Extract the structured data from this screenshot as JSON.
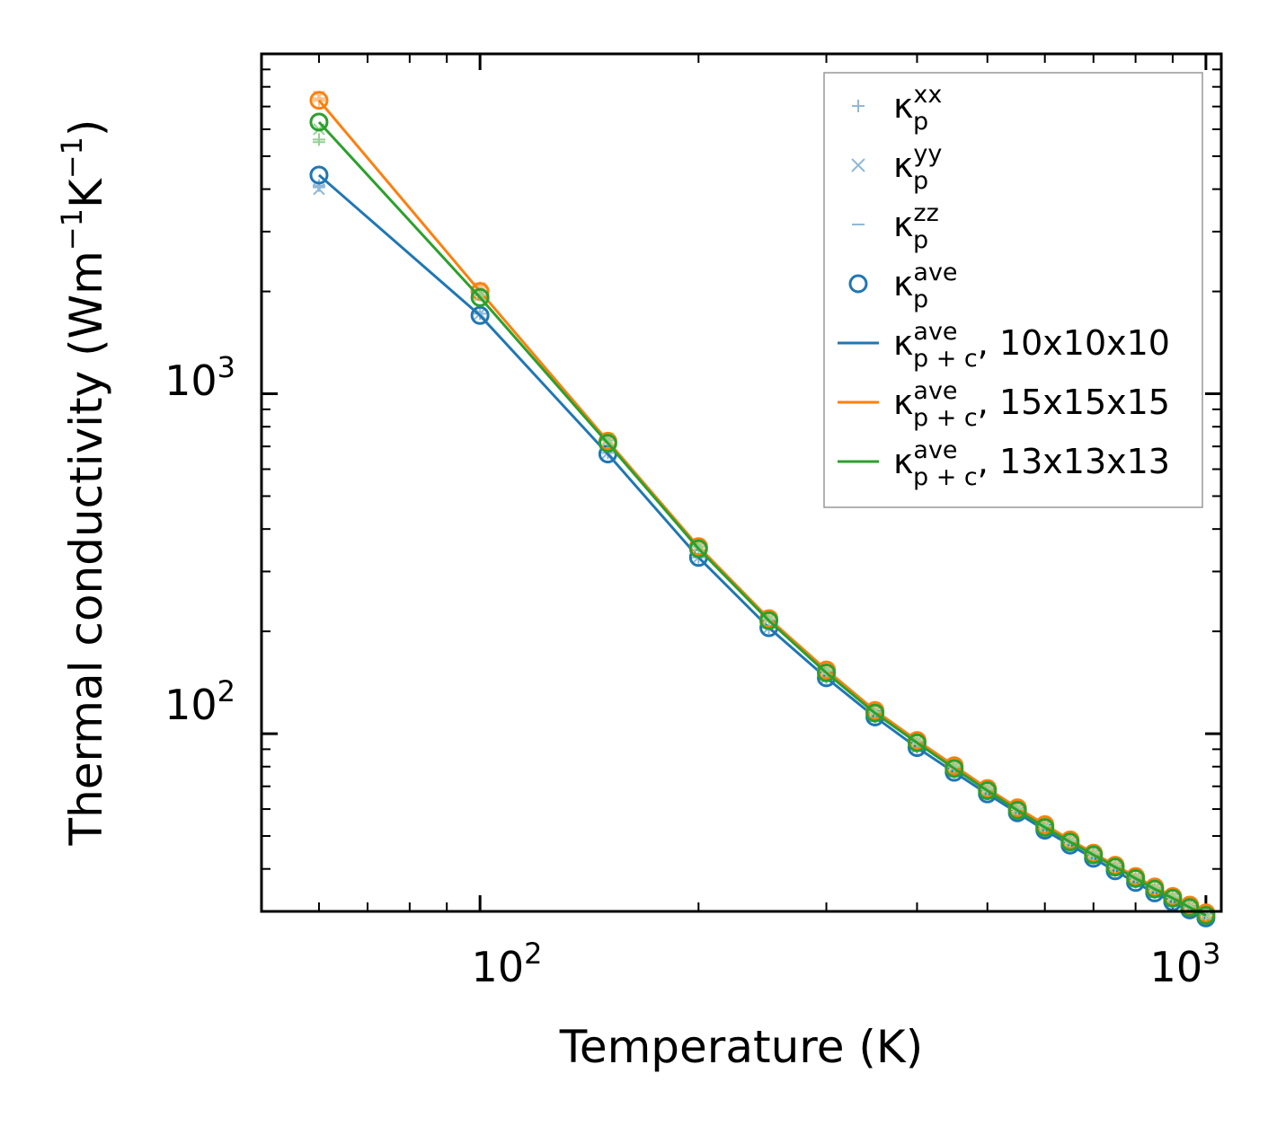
{
  "chart_data": {
    "type": "line",
    "xscale": "log",
    "yscale": "log",
    "xlabel": "Temperature (K)",
    "ylabel": {
      "prefix": "Thermal conductivity (Wm",
      "exp1": "−1",
      "middle": "K",
      "exp2": "−1",
      "suffix": ")"
    },
    "xlim": [
      50,
      1050
    ],
    "ylim": [
      30,
      10000
    ],
    "x_ticks": [
      {
        "value": 100,
        "base": "10",
        "exp": "2"
      },
      {
        "value": 1000,
        "base": "10",
        "exp": "3"
      }
    ],
    "y_ticks": [
      {
        "value": 100,
        "base": "10",
        "exp": "2"
      },
      {
        "value": 1000,
        "base": "10",
        "exp": "3"
      }
    ],
    "x": [
      60,
      100,
      150,
      200,
      250,
      300,
      350,
      400,
      450,
      500,
      550,
      600,
      650,
      700,
      750,
      800,
      850,
      900,
      950,
      1000
    ],
    "series": [
      {
        "name": "κp,p+c ave, 10x10x10",
        "color": "#1f77b4",
        "kxx": [
          4100,
          1720,
          670,
          330,
          205,
          146,
          112,
          91,
          77,
          66.5,
          58.5,
          52,
          47,
          43,
          39.5,
          36.5,
          34,
          32,
          30.3,
          28.7
        ],
        "kyy": [
          4000,
          1720,
          670,
          330,
          205,
          146,
          112,
          91,
          77,
          66.5,
          58.5,
          52,
          47,
          43,
          39.5,
          36.5,
          34,
          32,
          30.3,
          28.7
        ],
        "kzz": [
          4050,
          1720,
          670,
          330,
          205,
          146,
          112,
          91,
          77,
          66.5,
          58.5,
          52,
          47,
          43,
          39.5,
          36.5,
          34,
          32,
          30.3,
          28.7
        ],
        "kave": [
          4400,
          1700,
          665,
          330,
          205,
          146,
          112,
          91,
          77,
          66.5,
          58.5,
          52,
          47,
          43,
          39.5,
          36.5,
          34,
          32,
          30.3,
          28.7
        ],
        "kpc": [
          4400,
          1700,
          665,
          330,
          205,
          146,
          112,
          91,
          77,
          66.5,
          58.5,
          52,
          47,
          43,
          39.5,
          36.5,
          34,
          32,
          30.3,
          28.7
        ]
      },
      {
        "name": "κp,p+c ave, 15x15x15",
        "color": "#ff7f0e",
        "kxx": [
          7300,
          2050,
          740,
          360,
          220,
          155,
          118,
          96,
          81,
          69.5,
          61,
          54.5,
          49,
          44.8,
          41.3,
          38.2,
          35.6,
          33.4,
          31.5,
          29.9
        ],
        "kyy": [
          7500,
          2050,
          740,
          360,
          220,
          155,
          118,
          96,
          81,
          69.5,
          61,
          54.5,
          49,
          44.8,
          41.3,
          38.2,
          35.6,
          33.4,
          31.5,
          29.9
        ],
        "kzz": [
          7400,
          2050,
          740,
          360,
          220,
          155,
          118,
          96,
          81,
          69.5,
          61,
          54.5,
          49,
          44.8,
          41.3,
          38.2,
          35.6,
          33.4,
          31.5,
          29.9
        ],
        "kave": [
          7300,
          2000,
          725,
          355,
          218,
          154,
          117,
          95.5,
          80.5,
          69,
          60.5,
          54,
          48.7,
          44.5,
          41,
          38,
          35.4,
          33.2,
          31.3,
          29.7
        ],
        "kpc": [
          7300,
          2000,
          725,
          355,
          218,
          154,
          117,
          95.5,
          80.5,
          69,
          60.5,
          54,
          48.7,
          44.5,
          41,
          38,
          35.4,
          33.2,
          31.3,
          29.7
        ]
      },
      {
        "name": "κp,p+c ave, 13x13x13",
        "color": "#2ca02c",
        "kxx": [
          5600,
          1950,
          730,
          355,
          217,
          153,
          116,
          95,
          80,
          68.5,
          60,
          53.5,
          48.3,
          44.2,
          40.7,
          37.7,
          35.1,
          33,
          31,
          29.4
        ],
        "kyy": [
          6000,
          1950,
          730,
          355,
          217,
          153,
          116,
          95,
          80,
          68.5,
          60,
          53.5,
          48.3,
          44.2,
          40.7,
          37.7,
          35.1,
          33,
          31,
          29.4
        ],
        "kzz": [
          5500,
          1950,
          730,
          355,
          217,
          153,
          116,
          95,
          80,
          68.5,
          60,
          53.5,
          48.3,
          44.2,
          40.7,
          37.7,
          35.1,
          33,
          31,
          29.4
        ],
        "kave": [
          6300,
          1920,
          715,
          350,
          215,
          151,
          115,
          94,
          79,
          68,
          59.5,
          53,
          48,
          44,
          40.5,
          37.5,
          34.9,
          32.8,
          30.8,
          29.2
        ],
        "kpc": [
          6300,
          1920,
          715,
          350,
          215,
          151,
          115,
          94,
          79,
          68,
          59.5,
          53,
          48,
          44,
          40.5,
          37.5,
          34.9,
          32.8,
          30.8,
          29.2
        ]
      }
    ],
    "legend": {
      "location": "upper right",
      "entries": [
        {
          "kind": "plus",
          "color": "#8fb8d9",
          "symbol": "κ",
          "sup": "xx",
          "sub": "p",
          "tail": ""
        },
        {
          "kind": "cross",
          "color": "#8fb8d9",
          "symbol": "κ",
          "sup": "yy",
          "sub": "p",
          "tail": ""
        },
        {
          "kind": "dash",
          "color": "#8fb8d9",
          "symbol": "κ",
          "sup": "zz",
          "sub": "p",
          "tail": ""
        },
        {
          "kind": "circle",
          "color": "#1f77b4",
          "symbol": "κ",
          "sup": "ave",
          "sub": "p",
          "tail": ""
        },
        {
          "kind": "line",
          "color": "#1f77b4",
          "symbol": "κ",
          "sup": "ave",
          "sub": "p + c",
          "tail": ", 10x10x10"
        },
        {
          "kind": "line",
          "color": "#ff7f0e",
          "symbol": "κ",
          "sup": "ave",
          "sub": "p + c",
          "tail": ", 15x15x15"
        },
        {
          "kind": "line",
          "color": "#2ca02c",
          "symbol": "κ",
          "sup": "ave",
          "sub": "p + c",
          "tail": ", 13x13x13"
        }
      ]
    }
  }
}
